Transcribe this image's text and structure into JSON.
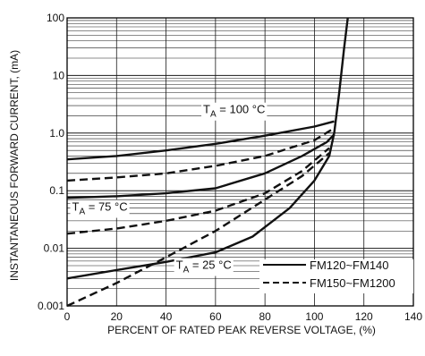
{
  "chart_data": {
    "type": "line",
    "title": "",
    "xlabel": "PERCENT OF RATED PEAK REVERSE VOLTAGE, (%)",
    "ylabel": "INSTANTANEOUS FORWARD CURRENT, (mA)",
    "xlim": [
      0,
      140
    ],
    "ylim": [
      0.001,
      100
    ],
    "y_scale": "log",
    "grid": true,
    "x_ticks": [
      {
        "value": 0,
        "label": "0"
      },
      {
        "value": 20,
        "label": "20"
      },
      {
        "value": 40,
        "label": "40"
      },
      {
        "value": 60,
        "label": "60"
      },
      {
        "value": 80,
        "label": "80"
      },
      {
        "value": 100,
        "label": "100"
      },
      {
        "value": 120,
        "label": "120"
      },
      {
        "value": 140,
        "label": "140"
      }
    ],
    "y_ticks": [
      {
        "value": 0.001,
        "label": "0.001"
      },
      {
        "value": 0.01,
        "label": "0.01"
      },
      {
        "value": 0.1,
        "label": "0.1"
      },
      {
        "value": 1,
        "label": "1.0"
      },
      {
        "value": 10,
        "label": "10"
      },
      {
        "value": 100,
        "label": "100"
      }
    ],
    "legend": [
      {
        "name": "FM120~FM140",
        "style": "solid"
      },
      {
        "name": "FM150~FM1200",
        "style": "dashed"
      }
    ],
    "annotations": [
      {
        "text_main": "T",
        "text_sub": "A",
        "text_rest": " = 100 °C",
        "x": 55,
        "y": 2.2
      },
      {
        "text_main": "T",
        "text_sub": "A",
        "text_rest": " = 75 °C",
        "x": 2,
        "y": 0.045
      },
      {
        "text_main": "T",
        "text_sub": "A",
        "text_rest": " = 25 °C",
        "x": 44,
        "y": 0.0044
      }
    ],
    "series": [
      {
        "style": "solid",
        "x": [
          0,
          20,
          40,
          60,
          80,
          100,
          108
        ],
        "y": [
          0.35,
          0.4,
          0.5,
          0.65,
          0.9,
          1.3,
          1.6
        ]
      },
      {
        "style": "solid",
        "x": [
          0,
          20,
          40,
          60,
          80,
          95,
          105,
          108
        ],
        "y": [
          0.075,
          0.08,
          0.09,
          0.11,
          0.2,
          0.4,
          0.7,
          0.95
        ]
      },
      {
        "style": "solid",
        "x": [
          0,
          20,
          40,
          60,
          75,
          90,
          100,
          106,
          108,
          110,
          112,
          113.5
        ],
        "y": [
          0.003,
          0.0042,
          0.0058,
          0.0085,
          0.016,
          0.05,
          0.15,
          0.4,
          1.0,
          5,
          30,
          100
        ]
      },
      {
        "style": "dashed",
        "x": [
          0,
          20,
          40,
          60,
          80,
          100,
          107
        ],
        "y": [
          0.15,
          0.17,
          0.2,
          0.27,
          0.4,
          0.75,
          1.15
        ]
      },
      {
        "style": "dashed",
        "x": [
          0,
          20,
          40,
          60,
          80,
          95,
          106
        ],
        "y": [
          0.018,
          0.022,
          0.03,
          0.045,
          0.09,
          0.22,
          0.55
        ]
      },
      {
        "style": "dashed",
        "x": [
          0,
          20,
          40,
          60,
          80,
          95,
          106
        ],
        "y": [
          0.001,
          0.0025,
          0.007,
          0.02,
          0.07,
          0.18,
          0.45
        ]
      }
    ]
  }
}
